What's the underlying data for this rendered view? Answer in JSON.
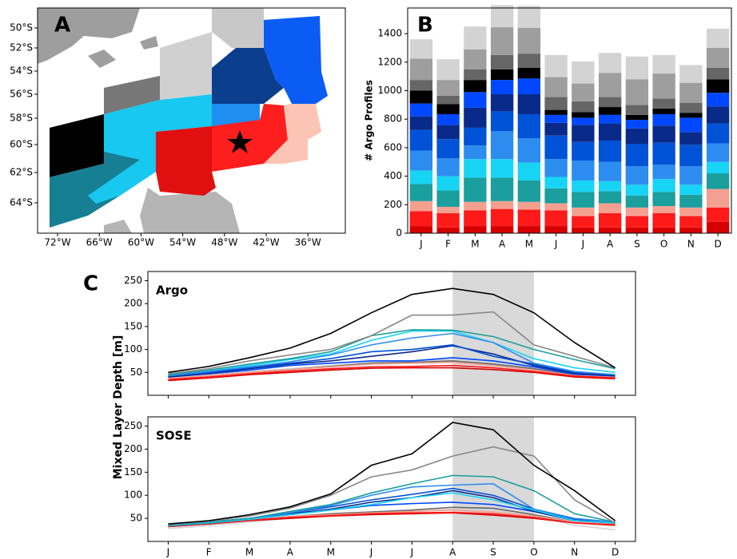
{
  "map": {
    "panel": "A",
    "lat_ticks": [
      "50°S",
      "52°S",
      "54°S",
      "56°S",
      "58°S",
      "60°S",
      "62°S",
      "64°S"
    ],
    "lon_ticks": [
      "72°W",
      "66°W",
      "60°W",
      "54°W",
      "48°W",
      "42°W",
      "36°W"
    ]
  },
  "chart_data": [
    {
      "type": "bar",
      "panel": "B",
      "ylabel": "# Argo Profiles",
      "categories": [
        "J",
        "F",
        "M",
        "A",
        "M",
        "J",
        "J",
        "A",
        "S",
        "O",
        "N",
        "D"
      ],
      "ylim": [
        0,
        1580
      ],
      "yticks": [
        0,
        200,
        400,
        600,
        800,
        1000,
        1200,
        1400
      ],
      "series": [
        {
          "color": "#d40000",
          "values": [
            50,
            40,
            50,
            50,
            50,
            50,
            40,
            40,
            40,
            40,
            40,
            80
          ]
        },
        {
          "color": "#ff1a1a",
          "values": [
            105,
            100,
            110,
            120,
            115,
            110,
            80,
            100,
            80,
            100,
            80,
            100
          ]
        },
        {
          "color": "#f4a090",
          "values": [
            70,
            45,
            60,
            55,
            55,
            50,
            60,
            70,
            60,
            50,
            60,
            130
          ]
        },
        {
          "color": "#1a9e9e",
          "values": [
            120,
            115,
            170,
            165,
            150,
            105,
            110,
            85,
            85,
            100,
            90,
            110
          ]
        },
        {
          "color": "#18d4f4",
          "values": [
            95,
            100,
            130,
            130,
            125,
            80,
            80,
            70,
            75,
            90,
            70,
            80
          ]
        },
        {
          "color": "#2d8cf0",
          "values": [
            140,
            125,
            95,
            195,
            170,
            125,
            140,
            135,
            130,
            100,
            130,
            130
          ]
        },
        {
          "color": "#0052d6",
          "values": [
            145,
            135,
            125,
            140,
            170,
            165,
            130,
            150,
            155,
            155,
            150,
            140
          ]
        },
        {
          "color": "#0a2a8a",
          "values": [
            95,
            100,
            140,
            120,
            140,
            90,
            120,
            120,
            110,
            120,
            90,
            120
          ]
        },
        {
          "color": "#0048ff",
          "values": [
            90,
            75,
            110,
            100,
            110,
            55,
            50,
            60,
            60,
            80,
            100,
            95
          ]
        },
        {
          "color": "#000000",
          "values": [
            90,
            70,
            85,
            75,
            75,
            35,
            40,
            55,
            35,
            40,
            35,
            95
          ]
        },
        {
          "color": "#666666",
          "values": [
            75,
            60,
            75,
            100,
            100,
            90,
            75,
            70,
            70,
            70,
            70,
            80
          ]
        },
        {
          "color": "#9e9e9e",
          "values": [
            150,
            110,
            140,
            195,
            180,
            140,
            125,
            170,
            180,
            175,
            140,
            140
          ]
        },
        {
          "color": "#d3d3d3",
          "values": [
            135,
            145,
            160,
            155,
            155,
            155,
            155,
            140,
            160,
            130,
            125,
            135
          ]
        }
      ]
    },
    {
      "type": "line",
      "panel": "C",
      "title": "Argo",
      "ylabel": "Mixed Layer Depth [m]",
      "categories": [
        null,
        null,
        null,
        null,
        null,
        null,
        null,
        null,
        null,
        null,
        null,
        null
      ],
      "ylim": [
        0,
        270
      ],
      "yticks": [
        50,
        100,
        150,
        200,
        250
      ],
      "shade": [
        7,
        9
      ],
      "series": [
        {
          "color": "#d3d3d3",
          "values": [
            38,
            45,
            52,
            58,
            65,
            72,
            75,
            78,
            70,
            58,
            45,
            40
          ]
        },
        {
          "color": "#666666",
          "values": [
            35,
            43,
            50,
            56,
            63,
            70,
            72,
            75,
            68,
            58,
            44,
            40
          ]
        },
        {
          "color": "#f4a090",
          "values": [
            37,
            43,
            50,
            56,
            62,
            68,
            70,
            72,
            65,
            55,
            43,
            40
          ]
        },
        {
          "color": "#d40000",
          "values": [
            32,
            38,
            45,
            50,
            55,
            59,
            60,
            60,
            56,
            50,
            40,
            36
          ]
        },
        {
          "color": "#ff1a1a",
          "values": [
            34,
            40,
            47,
            53,
            58,
            62,
            63,
            65,
            60,
            52,
            42,
            38
          ]
        },
        {
          "color": "#0048ff",
          "values": [
            40,
            47,
            55,
            65,
            70,
            75,
            75,
            82,
            75,
            62,
            46,
            42
          ]
        },
        {
          "color": "#0a2a8a",
          "values": [
            40,
            48,
            58,
            68,
            75,
            85,
            95,
            108,
            90,
            65,
            48,
            43
          ]
        },
        {
          "color": "#0052d6",
          "values": [
            42,
            50,
            60,
            70,
            80,
            95,
            100,
            110,
            85,
            68,
            50,
            45
          ]
        },
        {
          "color": "#18d4f4",
          "values": [
            43,
            52,
            65,
            78,
            90,
            120,
            140,
            140,
            115,
            80,
            60,
            50
          ]
        },
        {
          "color": "#2d8cf0",
          "values": [
            43,
            52,
            62,
            73,
            88,
            110,
            125,
            135,
            115,
            70,
            52,
            45
          ]
        },
        {
          "color": "#1a9e9e",
          "values": [
            45,
            55,
            68,
            80,
            95,
            130,
            143,
            142,
            128,
            100,
            78,
            58
          ]
        },
        {
          "color": "#888888",
          "values": [
            47,
            58,
            75,
            88,
            100,
            130,
            175,
            175,
            182,
            110,
            85,
            60
          ]
        },
        {
          "color": "#000000",
          "values": [
            50,
            63,
            82,
            103,
            135,
            180,
            220,
            233,
            220,
            180,
            115,
            60
          ]
        }
      ]
    },
    {
      "type": "line",
      "title": "SOSE",
      "categories": [
        "J",
        "F",
        "M",
        "A",
        "M",
        "J",
        "J",
        "A",
        "S",
        "O",
        "N",
        "D"
      ],
      "ylim": [
        0,
        270
      ],
      "yticks": [
        50,
        100,
        150,
        200,
        250
      ],
      "shade": [
        7,
        9
      ],
      "series": [
        {
          "color": "#d3d3d3",
          "values": [
            28,
            34,
            42,
            50,
            56,
            62,
            65,
            70,
            68,
            55,
            35,
            25
          ]
        },
        {
          "color": "#666666",
          "values": [
            32,
            38,
            46,
            54,
            60,
            64,
            68,
            74,
            72,
            58,
            42,
            35
          ]
        },
        {
          "color": "#f4a090",
          "values": [
            33,
            40,
            47,
            54,
            58,
            62,
            65,
            68,
            64,
            55,
            42,
            38
          ]
        },
        {
          "color": "#d40000",
          "values": [
            32,
            38,
            45,
            50,
            55,
            58,
            60,
            62,
            57,
            50,
            40,
            35
          ]
        },
        {
          "color": "#ff1a1a",
          "values": [
            33,
            40,
            46,
            52,
            56,
            60,
            62,
            63,
            60,
            52,
            40,
            36
          ]
        },
        {
          "color": "#0048ff",
          "values": [
            34,
            40,
            48,
            58,
            68,
            78,
            82,
            85,
            80,
            65,
            45,
            40
          ]
        },
        {
          "color": "#0a2a8a",
          "values": [
            35,
            42,
            50,
            60,
            70,
            85,
            95,
            110,
            95,
            65,
            45,
            40
          ]
        },
        {
          "color": "#0052d6",
          "values": [
            35,
            42,
            50,
            62,
            75,
            90,
            102,
            115,
            100,
            70,
            48,
            42
          ]
        },
        {
          "color": "#18d4f4",
          "values": [
            34,
            40,
            48,
            58,
            68,
            80,
            95,
            105,
            90,
            68,
            45,
            40
          ]
        },
        {
          "color": "#2d8cf0",
          "values": [
            35,
            42,
            50,
            62,
            78,
            100,
            118,
            122,
            125,
            70,
            50,
            42
          ]
        },
        {
          "color": "#1a9e9e",
          "values": [
            35,
            42,
            50,
            65,
            80,
            105,
            125,
            143,
            140,
            110,
            60,
            42
          ]
        },
        {
          "color": "#888888",
          "values": [
            37,
            44,
            55,
            72,
            100,
            140,
            155,
            185,
            205,
            185,
            90,
            40
          ]
        },
        {
          "color": "#000000",
          "values": [
            38,
            45,
            58,
            75,
            103,
            165,
            190,
            258,
            242,
            165,
            110,
            45
          ]
        }
      ]
    }
  ]
}
